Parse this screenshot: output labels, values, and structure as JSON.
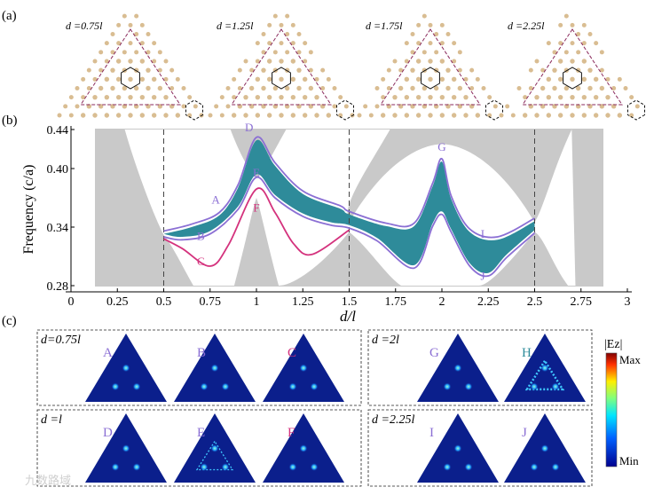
{
  "panel_labels": {
    "a": "(a)",
    "b": "(b)",
    "c": "(c)"
  },
  "lattice_tiles": [
    {
      "label": "d =0.75l",
      "ratio": 0.75
    },
    {
      "label": "d =1.25l",
      "ratio": 1.25
    },
    {
      "label": "d =1.75l",
      "ratio": 1.75
    },
    {
      "label": "d =2.25l",
      "ratio": 2.25
    }
  ],
  "chart_data": {
    "type": "line",
    "xlabel": "d/l",
    "ylabel": "Frequency (c/a)",
    "xlim": [
      0,
      3
    ],
    "ylim": [
      0.28,
      0.44
    ],
    "x_ticks": [
      {
        "v": 0,
        "t": "0"
      },
      {
        "v": 0.25,
        "t": "0.25"
      },
      {
        "v": 0.5,
        "t": "0.5"
      },
      {
        "v": 0.75,
        "t": "0.75"
      },
      {
        "v": 1,
        "t": "1"
      },
      {
        "v": 1.25,
        "t": "1.25"
      },
      {
        "v": 1.5,
        "t": "1.5"
      },
      {
        "v": 1.75,
        "t": "1.75"
      },
      {
        "v": 2,
        "t": "2"
      },
      {
        "v": 2.25,
        "t": "2.25"
      },
      {
        "v": 2.5,
        "t": "2.5"
      },
      {
        "v": 2.75,
        "t": "2.75"
      },
      {
        "v": 3,
        "t": "3"
      }
    ],
    "y_ticks": [
      {
        "v": 0.28,
        "t": "0.28"
      },
      {
        "v": 0.34,
        "t": "0.34"
      },
      {
        "v": 0.4,
        "t": "0.40"
      },
      {
        "v": 0.44,
        "t": "0.44"
      }
    ],
    "dashed_lines_x": [
      0.5,
      1.5,
      2.5
    ],
    "purple_upper": [
      [
        0.5,
        0.336
      ],
      [
        0.65,
        0.343
      ],
      [
        0.8,
        0.355
      ],
      [
        0.9,
        0.383
      ],
      [
        1.0,
        0.432
      ],
      [
        1.1,
        0.406
      ],
      [
        1.25,
        0.377
      ],
      [
        1.45,
        0.362
      ],
      [
        1.5,
        0.356
      ],
      [
        1.7,
        0.344
      ],
      [
        1.85,
        0.344
      ],
      [
        1.95,
        0.385
      ],
      [
        2.0,
        0.41
      ],
      [
        2.05,
        0.372
      ],
      [
        2.15,
        0.338
      ],
      [
        2.3,
        0.33
      ],
      [
        2.5,
        0.349
      ]
    ],
    "purple_lower": [
      [
        0.5,
        0.33
      ],
      [
        0.6,
        0.327
      ],
      [
        0.75,
        0.333
      ],
      [
        0.9,
        0.358
      ],
      [
        1.0,
        0.391
      ],
      [
        1.1,
        0.37
      ],
      [
        1.25,
        0.351
      ],
      [
        1.4,
        0.342
      ],
      [
        1.5,
        0.339
      ],
      [
        1.65,
        0.326
      ],
      [
        1.85,
        0.298
      ],
      [
        1.95,
        0.341
      ],
      [
        2.0,
        0.353
      ],
      [
        2.05,
        0.335
      ],
      [
        2.15,
        0.3
      ],
      [
        2.25,
        0.29
      ],
      [
        2.35,
        0.309
      ],
      [
        2.5,
        0.334
      ]
    ],
    "pink": [
      [
        0.5,
        0.328
      ],
      [
        0.6,
        0.318
      ],
      [
        0.75,
        0.3
      ],
      [
        0.85,
        0.322
      ],
      [
        1.0,
        0.379
      ],
      [
        1.1,
        0.355
      ],
      [
        1.2,
        0.323
      ],
      [
        1.3,
        0.312
      ],
      [
        1.5,
        0.337
      ]
    ],
    "point_labels": [
      {
        "id": "A",
        "x": 0.78,
        "y": 0.364,
        "color": "#8b6fd4"
      },
      {
        "id": "B",
        "x": 0.7,
        "y": 0.327,
        "color": "#8b6fd4"
      },
      {
        "id": "C",
        "x": 0.7,
        "y": 0.301,
        "color": "#d4327d"
      },
      {
        "id": "D",
        "x": 0.96,
        "y": 0.438,
        "color": "#8b6fd4"
      },
      {
        "id": "E",
        "x": 1.0,
        "y": 0.392,
        "color": "#8b6fd4"
      },
      {
        "id": "F",
        "x": 1.0,
        "y": 0.356,
        "color": "#d4327d"
      },
      {
        "id": "G",
        "x": 2.0,
        "y": 0.418,
        "color": "#8b6fd4"
      },
      {
        "id": "H",
        "x": 2.0,
        "y": 0.382,
        "color": "#2e8b9a"
      },
      {
        "id": "I",
        "x": 2.22,
        "y": 0.329,
        "color": "#8b6fd4"
      },
      {
        "id": "J",
        "x": 2.22,
        "y": 0.286,
        "color": "#8b6fd4"
      }
    ]
  },
  "field_groups": [
    {
      "label": "d=0.75l",
      "items": [
        {
          "letter": "A",
          "color": "#8b6fd4"
        },
        {
          "letter": "B",
          "color": "#8b6fd4"
        },
        {
          "letter": "C",
          "color": "#d4327d"
        }
      ]
    },
    {
      "label": "d =l",
      "items": [
        {
          "letter": "D",
          "color": "#8b6fd4"
        },
        {
          "letter": "E",
          "color": "#8b6fd4"
        },
        {
          "letter": "F",
          "color": "#d4327d"
        }
      ]
    },
    {
      "label": "d =2l",
      "items": [
        {
          "letter": "G",
          "color": "#8b6fd4"
        },
        {
          "letter": "H",
          "color": "#2e8b9a"
        }
      ]
    },
    {
      "label": "d =2.25l",
      "items": [
        {
          "letter": "I",
          "color": "#8b6fd4"
        },
        {
          "letter": "J",
          "color": "#8b6fd4"
        }
      ]
    }
  ],
  "colorbar": {
    "title": "|Ez|",
    "max": "Max",
    "min": "Min"
  },
  "watermark": "九数路域"
}
